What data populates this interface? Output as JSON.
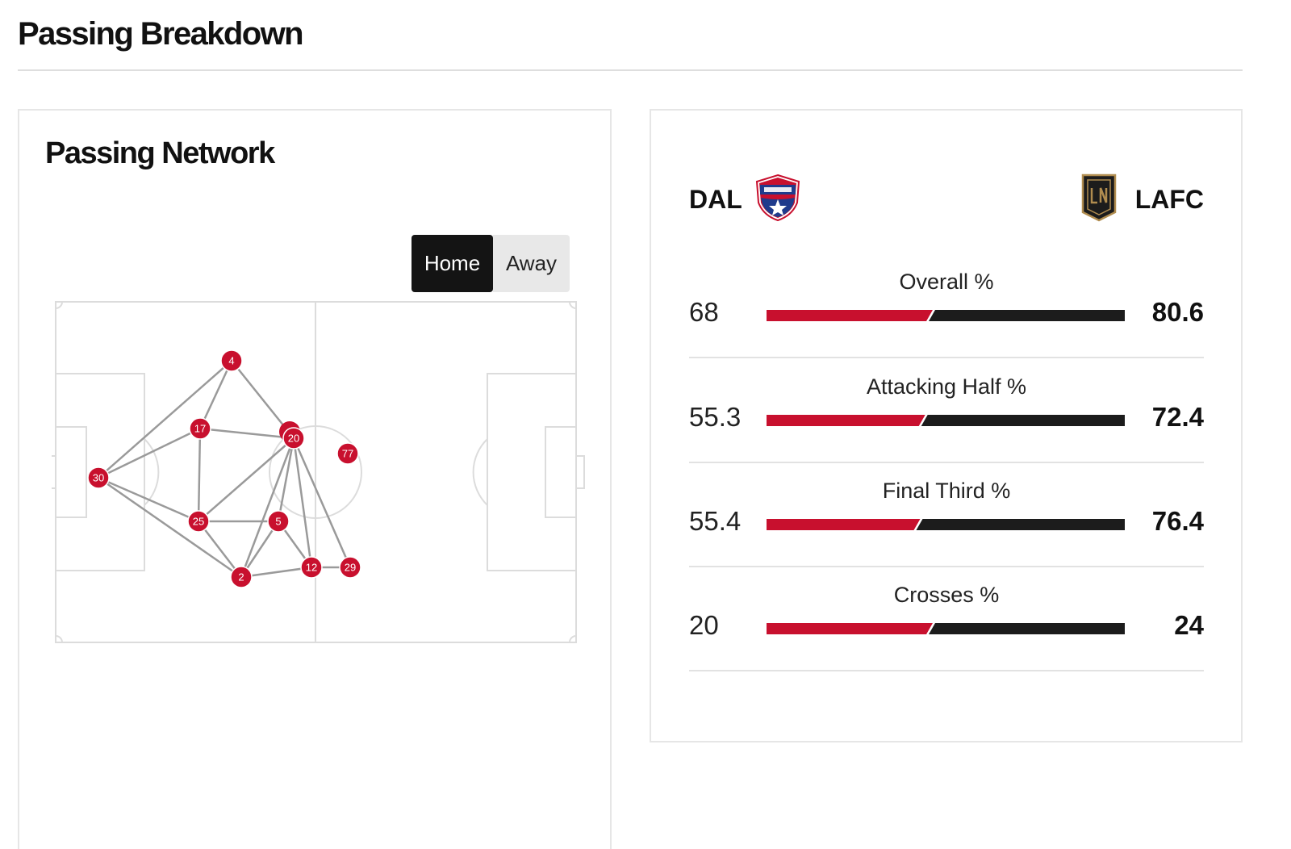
{
  "header": {
    "title": "Passing Breakdown"
  },
  "passing_network": {
    "title": "Passing Network",
    "toggle": {
      "home_label": "Home",
      "away_label": "Away",
      "selected": "Home"
    },
    "players": [
      {
        "number": "4"
      },
      {
        "number": "17"
      },
      {
        "number": "20"
      },
      {
        "number": "77"
      },
      {
        "number": "30"
      },
      {
        "number": "25"
      },
      {
        "number": "5"
      },
      {
        "number": "2"
      },
      {
        "number": "12"
      },
      {
        "number": "29"
      }
    ],
    "node_color": "#c8102e",
    "link_color": "#9a9a9a"
  },
  "comparison": {
    "home_team": {
      "code": "DAL",
      "color": "#c8102e"
    },
    "away_team": {
      "code": "LAFC",
      "color": "#1c1c1c"
    },
    "stats": [
      {
        "label": "Overall %",
        "home": "68",
        "away": "80.6"
      },
      {
        "label": "Attacking Half %",
        "home": "55.3",
        "away": "72.4"
      },
      {
        "label": "Final Third %",
        "home": "55.4",
        "away": "76.4"
      },
      {
        "label": "Crosses %",
        "home": "20",
        "away": "24"
      }
    ]
  }
}
